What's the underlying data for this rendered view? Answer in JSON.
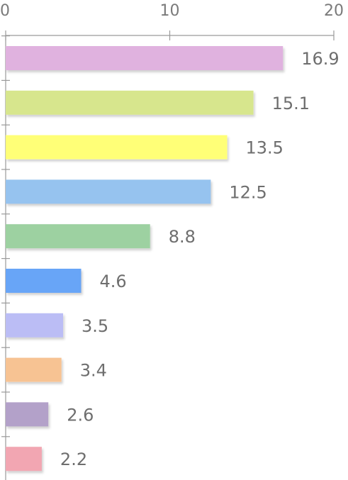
{
  "chart_data": {
    "type": "bar",
    "orientation": "horizontal",
    "x_ticks": [
      0,
      10,
      20
    ],
    "xlim": [
      0,
      20
    ],
    "grid": false,
    "legend": "none",
    "values": [
      16.9,
      15.1,
      13.5,
      12.5,
      8.8,
      4.6,
      3.5,
      3.4,
      2.6,
      2.2
    ],
    "value_labels": [
      "16.9",
      "15.1",
      "13.5",
      "12.5",
      "8.8",
      "4.6",
      "3.5",
      "3.4",
      "2.6",
      "2.2"
    ],
    "colors": [
      "#e0b2df",
      "#d7e68d",
      "#ffff77",
      "#96c3ef",
      "#9dd1a1",
      "#68a5f7",
      "#bbbdf5",
      "#f7c393",
      "#b3a1c9",
      "#f2a6b2"
    ]
  }
}
